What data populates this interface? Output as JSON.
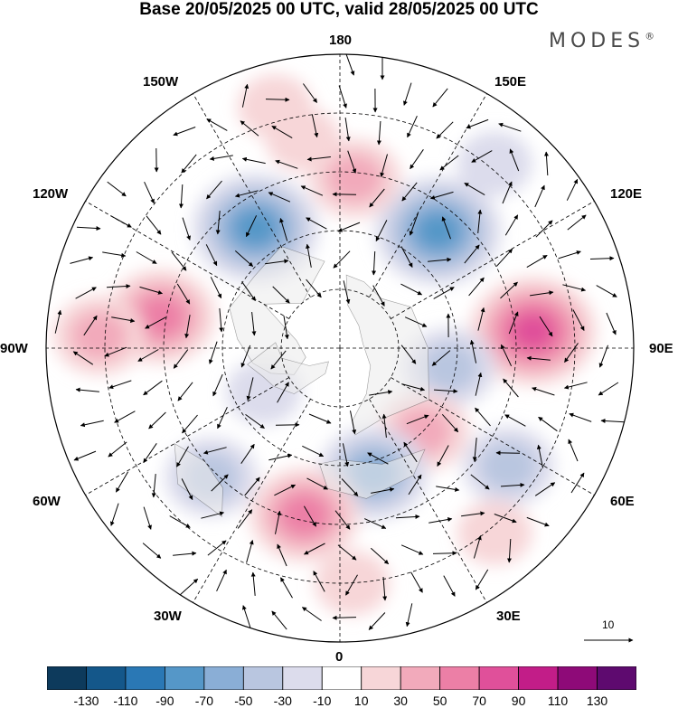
{
  "title": "Base 20/05/2025 00 UTC, valid 28/05/2025 00 UTC",
  "brand": "MODES",
  "brand_mark": "®",
  "longitude_labels": {
    "lon_180": "180",
    "lon_150e": "150E",
    "lon_120e": "120E",
    "lon_90e": "90E",
    "lon_60e": "60E",
    "lon_30e": "30E",
    "lon_0": "0",
    "lon_30w": "30W",
    "lon_60w": "60W",
    "lon_90w": "90W",
    "lon_120w": "120W",
    "lon_150w": "150W"
  },
  "vector_scale_label": "10",
  "colorbar": {
    "colors": [
      "#0d3a5c",
      "#14578a",
      "#2a78b5",
      "#5597c8",
      "#8aaed6",
      "#b9c6e0",
      "#dcdcec",
      "#ffffff",
      "#f7d6d8",
      "#f2aabb",
      "#ec7fa6",
      "#e0509a",
      "#c21d88",
      "#8e0a78",
      "#5e0a6f"
    ],
    "ticks": [
      "-130",
      "-110",
      "-90",
      "-70",
      "-50",
      "-30",
      "-10",
      "10",
      "30",
      "50",
      "70",
      "90",
      "110",
      "130"
    ]
  },
  "anomaly_centers": [
    {
      "lon_deg": -145,
      "colat_deg": 50,
      "value": -90
    },
    {
      "lon_deg": 140,
      "colat_deg": 52,
      "value": -90
    },
    {
      "lon_deg": 95,
      "colat_deg": 66,
      "value": 90
    },
    {
      "lon_deg": -100,
      "colat_deg": 62,
      "value": 70
    },
    {
      "lon_deg": -93,
      "colat_deg": 82,
      "value": 50
    },
    {
      "lon_deg": 175,
      "colat_deg": 58,
      "value": 50
    },
    {
      "lon_deg": -170,
      "colat_deg": 72,
      "value": 30
    },
    {
      "lon_deg": 80,
      "colat_deg": 38,
      "value": -50
    },
    {
      "lon_deg": 45,
      "colat_deg": 40,
      "value": 50
    },
    {
      "lon_deg": 15,
      "colat_deg": 44,
      "value": -70
    },
    {
      "lon_deg": -12,
      "colat_deg": 58,
      "value": 70
    },
    {
      "lon_deg": -45,
      "colat_deg": 62,
      "value": -50
    },
    {
      "lon_deg": 55,
      "colat_deg": 70,
      "value": -50
    },
    {
      "lon_deg": -60,
      "colat_deg": 30,
      "value": -30
    },
    {
      "lon_deg": 3,
      "colat_deg": 80,
      "value": 30
    },
    {
      "lon_deg": 40,
      "colat_deg": 82,
      "value": 30
    },
    {
      "lon_deg": -165,
      "colat_deg": 85,
      "value": 30
    },
    {
      "lon_deg": 140,
      "colat_deg": 82,
      "value": -30
    }
  ]
}
